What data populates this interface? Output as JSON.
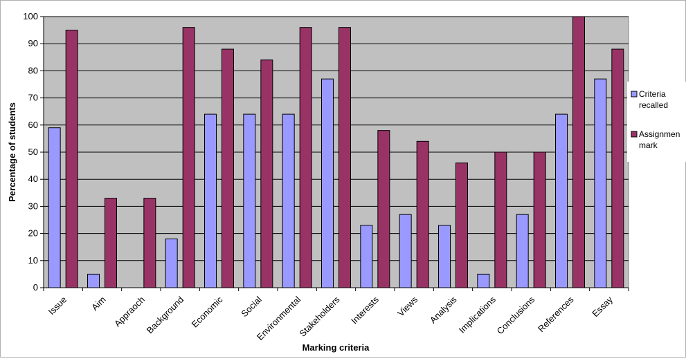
{
  "chart_data": {
    "type": "bar",
    "xlabel": "Marking criteria",
    "ylabel": "Percentage of students",
    "ylim": [
      0,
      100
    ],
    "yticks": [
      0,
      10,
      20,
      30,
      40,
      50,
      60,
      70,
      80,
      90,
      100
    ],
    "grid": true,
    "legend_position": "right",
    "plot_background": "#c0c0c0",
    "categories": [
      "Issue",
      "Aim",
      "Appraoch",
      "Background",
      "Economic",
      "Social",
      "Environmental",
      "Stakeholders",
      "Interests",
      "Views",
      "Analysis",
      "Implications",
      "Conclusions",
      "References",
      "Essay"
    ],
    "series": [
      {
        "name": "Criteria recalled",
        "legend_lines": [
          "Criteria",
          "recalled"
        ],
        "color": "#9999ff",
        "values": [
          59,
          5,
          0,
          18,
          64,
          64,
          64,
          77,
          23,
          27,
          23,
          5,
          27,
          64,
          77
        ]
      },
      {
        "name": "Assignment mark",
        "legend_lines": [
          "Assignmen",
          "mark"
        ],
        "color": "#993366",
        "values": [
          95,
          33,
          33,
          96,
          88,
          84,
          96,
          96,
          58,
          54,
          46,
          50,
          50,
          100,
          88
        ]
      }
    ]
  }
}
